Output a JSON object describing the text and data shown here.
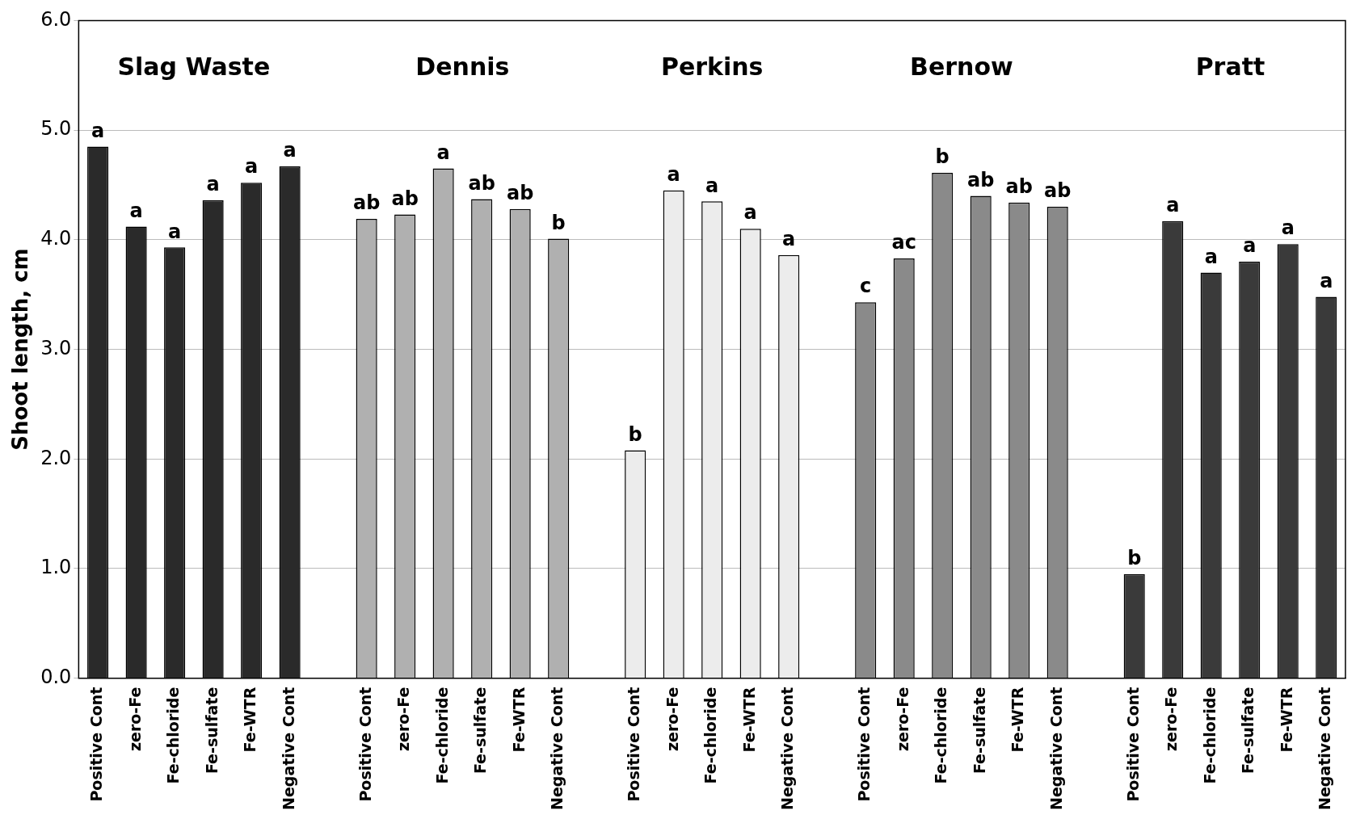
{
  "chart_data": {
    "type": "bar",
    "ylabel": "Shoot length, cm",
    "categories": [
      "Positive Cont",
      "zero-Fe",
      "Fe-chloride",
      "Fe-sulfate",
      "Fe-WTR",
      "Negative Cont",
      null,
      "Positive Cont",
      "zero-Fe",
      "Fe-chloride",
      "Fe-sulfate",
      "Fe-WTR",
      "Negative Cont",
      null,
      "Positive Cont",
      "zero-Fe",
      "Fe-chloride",
      "Fe-WTR",
      "Negative Cont",
      null,
      "Positive Cont",
      "zero-Fe",
      "Fe-chloride",
      "Fe-sulfate",
      "Fe-WTR",
      "Negative Cont",
      null,
      "Positive Cont",
      "zero-Fe",
      "Fe-chloride",
      "Fe-sulfate",
      "Fe-WTR",
      "Negative Cont"
    ],
    "values": [
      4.85,
      4.12,
      3.93,
      4.36,
      4.52,
      4.67,
      null,
      4.19,
      4.23,
      4.65,
      4.37,
      4.28,
      4.01,
      null,
      2.08,
      4.45,
      4.35,
      4.1,
      3.86,
      null,
      3.43,
      3.83,
      4.61,
      4.4,
      4.34,
      4.3,
      null,
      0.95,
      4.17,
      3.7,
      3.8,
      3.96,
      3.48
    ],
    "colors": [
      "#2a2a2a",
      "#2a2a2a",
      "#2a2a2a",
      "#2a2a2a",
      "#2a2a2a",
      "#2a2a2a",
      null,
      "#b0b0b0",
      "#b0b0b0",
      "#b0b0b0",
      "#b0b0b0",
      "#b0b0b0",
      "#b0b0b0",
      null,
      "#ececec",
      "#ececec",
      "#ececec",
      "#ececec",
      "#ececec",
      null,
      "#8a8a8a",
      "#8a8a8a",
      "#8a8a8a",
      "#8a8a8a",
      "#8a8a8a",
      "#8a8a8a",
      null,
      "#3a3a3a",
      "#3a3a3a",
      "#3a3a3a",
      "#3a3a3a",
      "#3a3a3a",
      "#3a3a3a"
    ],
    "value_labels": [
      "a",
      "a",
      "a",
      "a",
      "a",
      "a",
      null,
      "ab",
      "ab",
      "a",
      "ab",
      "ab",
      "b",
      null,
      "b",
      "a",
      "a",
      "a",
      "a",
      null,
      "c",
      "ac",
      "b",
      "ab",
      "ab",
      "ab",
      null,
      "b",
      "a",
      "a",
      "a",
      "a",
      "a"
    ],
    "annotations": [
      "Slag Waste",
      "Dennis",
      "Perkins",
      "Bernow",
      "Pratt"
    ],
    "ylim": [
      0,
      6
    ],
    "yticks": [
      {
        "value": 0,
        "label": "0.0"
      },
      {
        "value": 1,
        "label": "1.0"
      },
      {
        "value": 2,
        "label": "2.0"
      },
      {
        "value": 3,
        "label": "3.0"
      },
      {
        "value": 4,
        "label": "4.0"
      },
      {
        "value": 5,
        "label": "5.0"
      },
      {
        "value": 6,
        "label": "6.0"
      }
    ],
    "grid": "y"
  }
}
